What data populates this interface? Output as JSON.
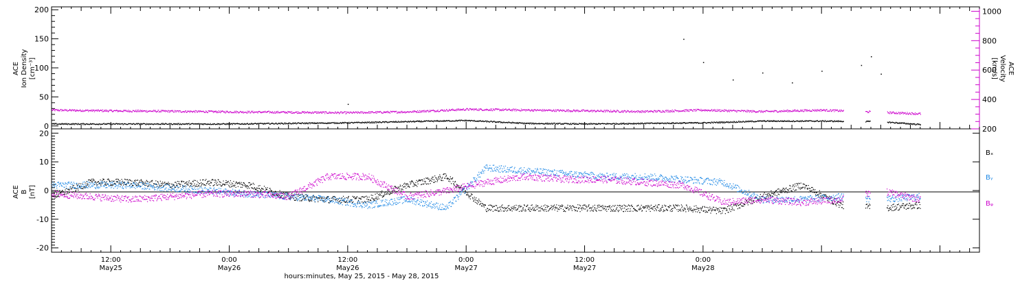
{
  "chart_data": [
    {
      "type": "scatter",
      "panel": "top",
      "ylabel_left": [
        "ACE",
        "Ion Density",
        "[cm⁻³]"
      ],
      "ylabel_right": [
        "ACE",
        "Velocity",
        "[km/s]"
      ],
      "ylim_left": [
        -5,
        205
      ],
      "yticks_left": [
        "200",
        "150",
        "100",
        "50",
        "0"
      ],
      "ylim_right": [
        200,
        1030
      ],
      "yticks_right": [
        "1000",
        "800",
        "600",
        "400",
        "200"
      ],
      "series": [
        {
          "name": "",
          "axis": "left",
          "color": "#000000",
          "x_hours_since_May25_00": [
            6,
            12,
            18,
            24,
            30,
            36,
            42,
            48,
            54,
            60,
            66,
            72,
            78,
            84,
            90,
            94
          ],
          "values": [
            4,
            4,
            4,
            4,
            5,
            6,
            8,
            10,
            5,
            4,
            5,
            6,
            9,
            9,
            8,
            3
          ],
          "sparse_spikes": [
            [
              36,
              38
            ],
            [
              70,
              150
            ],
            [
              72,
              110
            ],
            [
              75,
              80
            ],
            [
              78,
              92
            ],
            [
              81,
              75
            ],
            [
              84,
              95
            ],
            [
              88,
              105
            ],
            [
              89,
              120
            ],
            [
              90,
              90
            ]
          ]
        },
        {
          "name": "",
          "axis": "right",
          "color": "#cc00cc",
          "x_hours_since_May25_00": [
            6,
            12,
            18,
            24,
            30,
            36,
            42,
            48,
            54,
            60,
            66,
            72,
            78,
            84,
            90,
            94
          ],
          "values": [
            330,
            325,
            322,
            318,
            315,
            312,
            318,
            335,
            330,
            325,
            320,
            330,
            320,
            330,
            315,
            305
          ]
        }
      ]
    },
    {
      "type": "scatter",
      "panel": "bottom",
      "ylabel_left": [
        "ACE",
        "B",
        "[nT]"
      ],
      "ylim": [
        -21.5,
        21.5
      ],
      "yticks": [
        "20",
        "10",
        "0",
        "-10",
        "-20"
      ],
      "legend": [
        "Bₓ",
        "Bᵧ",
        "Bᵩ"
      ],
      "legend_placement": "right",
      "series": [
        {
          "name": "Bx",
          "color": "#000000",
          "x_hours_since_May25_00": [
            6,
            10,
            14,
            18,
            22,
            26,
            30,
            34,
            38,
            42,
            46,
            50,
            54,
            58,
            62,
            66,
            70,
            74,
            78,
            82,
            86,
            90,
            94
          ],
          "values": [
            -2,
            3,
            3,
            2,
            3,
            2,
            -2,
            -3,
            -3,
            2,
            5,
            -6,
            -6,
            -6,
            -6,
            -6,
            -6,
            -7,
            -2,
            2,
            -5,
            -6,
            -5
          ]
        },
        {
          "name": "By",
          "color": "#1e88e5",
          "x_hours_since_May25_00": [
            6,
            10,
            14,
            18,
            22,
            26,
            30,
            34,
            38,
            42,
            46,
            50,
            54,
            58,
            62,
            66,
            70,
            74,
            78,
            82,
            86,
            90,
            94
          ],
          "values": [
            2,
            2,
            2,
            1,
            0,
            -1,
            -2,
            -3,
            -5,
            -3,
            -6,
            8,
            7,
            6,
            5,
            5,
            4,
            3,
            -3,
            -3,
            -2,
            -3,
            -2
          ]
        },
        {
          "name": "Bz",
          "color": "#cc00cc",
          "x_hours_since_May25_00": [
            6,
            10,
            14,
            18,
            22,
            26,
            30,
            34,
            38,
            42,
            46,
            50,
            54,
            58,
            62,
            66,
            70,
            74,
            78,
            82,
            86,
            90,
            94
          ],
          "values": [
            -1,
            -2,
            -3,
            -2,
            -1,
            -1,
            -2,
            5,
            5,
            -2,
            0,
            3,
            5,
            4,
            4,
            3,
            2,
            -4,
            -3,
            -4,
            -3,
            0,
            -3
          ]
        }
      ]
    }
  ],
  "x_axis": {
    "range_hours_since_May25_00": [
      6,
      100
    ],
    "ticks": [
      {
        "hours": 12,
        "time": "12:00",
        "date": "May25"
      },
      {
        "hours": 24,
        "time": "0:00",
        "date": "May26"
      },
      {
        "hours": 36,
        "time": "12:00",
        "date": "May26"
      },
      {
        "hours": 48,
        "time": "0:00",
        "date": "May27"
      },
      {
        "hours": 60,
        "time": "12:00",
        "date": "May27"
      },
      {
        "hours": 72,
        "time": "0:00",
        "date": "May28"
      }
    ],
    "label": "hours:minutes, May 25, 2015 - May 28, 2015"
  },
  "colors": {
    "black": "#000000",
    "magenta": "#cc00cc",
    "blue": "#1e88e5"
  }
}
